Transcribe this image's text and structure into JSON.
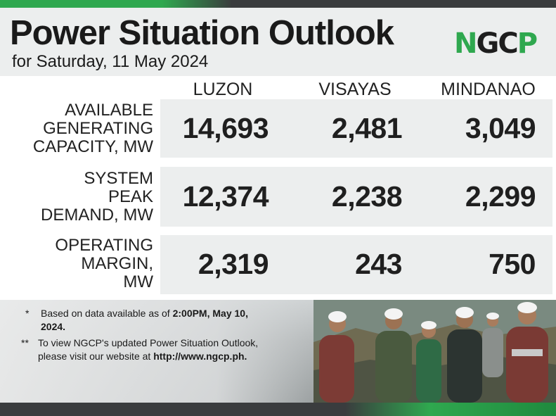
{
  "header": {
    "title": "Power Situation Outlook",
    "subtitle": "for Saturday, 11 May 2024",
    "logo_text": "NGCP"
  },
  "columns": [
    "LUZON",
    "VISAYAS",
    "MINDANAO"
  ],
  "rows": [
    {
      "label_lines": [
        "AVAILABLE",
        "GENERATING",
        "CAPACITY, MW"
      ],
      "values": [
        "14,693",
        "2,481",
        "3,049"
      ]
    },
    {
      "label_lines": [
        "SYSTEM",
        "PEAK",
        "DEMAND, MW"
      ],
      "values": [
        "12,374",
        "2,238",
        "2,299"
      ]
    },
    {
      "label_lines": [
        "OPERATING",
        "MARGIN,",
        "MW"
      ],
      "values": [
        "2,319",
        "243",
        "750"
      ]
    }
  ],
  "notes": [
    {
      "marker": "*",
      "text": "Based on data available as of ",
      "bold": "2:00PM, May 10, 2024."
    },
    {
      "marker": "**",
      "text": "To view NGCP's updated Power Situation Outlook, please visit our website at ",
      "bold": "http://www.ngcp.ph."
    }
  ],
  "colors": {
    "brand_green": "#2fa84f",
    "dark_bar": "#3a3c3e",
    "panel_gray": "#eceeee",
    "text_dark": "#1a1a1a"
  }
}
